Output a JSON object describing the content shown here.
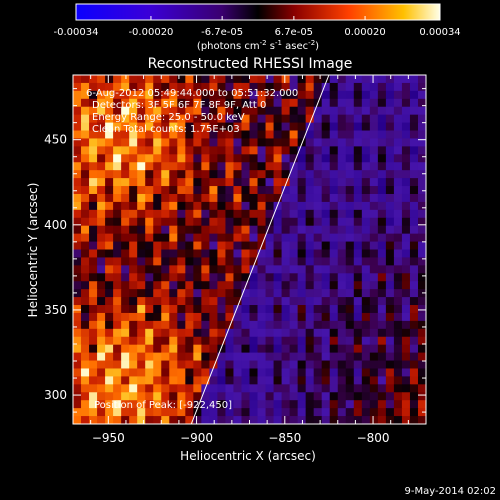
{
  "chart_data": {
    "type": "heatmap",
    "title": "Reconstructed RHESSI Image",
    "xlabel": "Heliocentric X (arcsec)",
    "ylabel": "Heliocentric Y (arcsec)",
    "xlim": [
      -970,
      -770
    ],
    "ylim": [
      283,
      488
    ],
    "x_ticks": [
      -950,
      -900,
      -850,
      -800
    ],
    "y_ticks": [
      300,
      350,
      400,
      450
    ],
    "colorbar": {
      "range": [
        -0.00034,
        0.00034
      ],
      "tick_values": [
        -0.00034,
        -0.0002,
        -6.7e-05,
        6.7e-05,
        0.0002,
        0.00034
      ],
      "tick_labels": [
        "-0.00034",
        "-0.00020",
        "-6.7e-05",
        "6.7e-05",
        "0.00020",
        "0.00034"
      ],
      "unit_label": "(photons cm",
      "unit_exp1": "-2",
      "unit_mid": " s",
      "unit_exp2": "-1",
      "unit_mid2": " asec",
      "unit_exp3": "-2",
      "unit_close": ")"
    },
    "annotations": {
      "time": "6-Aug-2012 05:49:44.000 to 05:51:32.000",
      "detectors": "Detectors: 3F 5F 6F 7F 8F 9F, Att 0",
      "energy": "Energy Range: 25.0 - 50.0 keV",
      "clean": "Clean     Total counts: 1.75E+03",
      "peak": "Position of Peak: [-922,450]"
    },
    "peak_position": [
      -922,
      450
    ],
    "limb_line": [
      [
        -903,
        283
      ],
      [
        -825,
        488
      ]
    ],
    "footer": "9-May-2014 02:02"
  }
}
